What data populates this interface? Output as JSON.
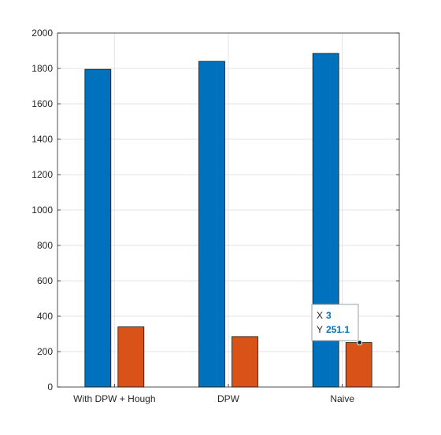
{
  "chart_data": {
    "type": "bar",
    "categories": [
      "With DPW + Hough",
      "DPW",
      "Naive"
    ],
    "series": [
      {
        "values": [
          1795,
          1840,
          1885
        ],
        "color": "#0072BD"
      },
      {
        "values": [
          340,
          285,
          251.1
        ],
        "color": "#D95319"
      }
    ],
    "ylim": [
      0,
      2000
    ],
    "yticks": [
      0,
      200,
      400,
      600,
      800,
      1000,
      1200,
      1400,
      1600,
      1800,
      2000
    ],
    "grid": true,
    "datatip": {
      "x_label": "X",
      "x_value": "3",
      "y_label": "Y",
      "y_value": "251.1",
      "value_color": "#0072BD",
      "series_index": 1,
      "category_index": 2
    }
  }
}
